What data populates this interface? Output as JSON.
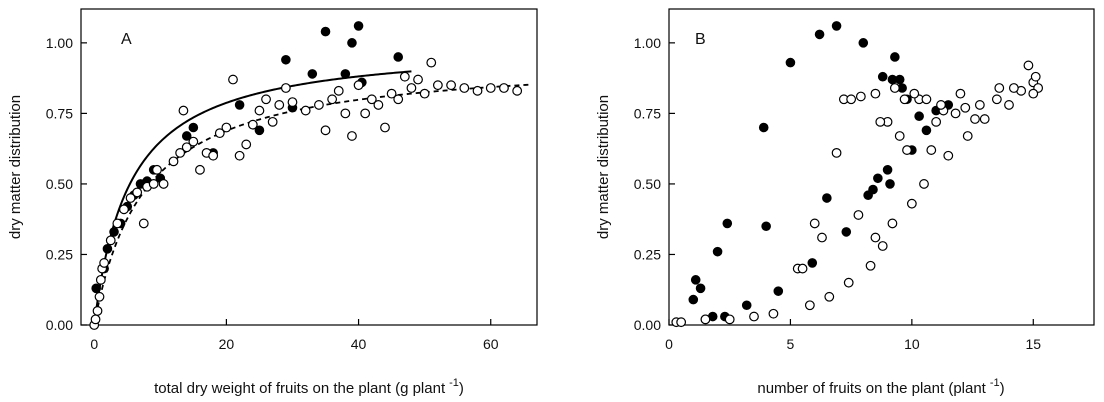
{
  "chart_data": [
    {
      "type": "scatter",
      "panel": "A",
      "xlabel": "total dry weight of fruits on the plant (g plant",
      "xlabel_sup": "-1",
      "xlabel_end": ")",
      "ylabel": "dry matter distribution",
      "xlim": [
        -2,
        67
      ],
      "ylim": [
        0,
        1.12
      ],
      "xticks": [
        0,
        20,
        40,
        60
      ],
      "yticks": [
        0.0,
        0.25,
        0.5,
        0.75,
        1.0
      ],
      "ytick_labels": [
        "0.00",
        "0.25",
        "0.50",
        "0.75",
        "1.00"
      ],
      "grid": false,
      "series": [
        {
          "marker": "filled",
          "points": [
            [
              0.3,
              0.13
            ],
            [
              1.5,
              0.2
            ],
            [
              2,
              0.27
            ],
            [
              3,
              0.33
            ],
            [
              4,
              0.36
            ],
            [
              5,
              0.42
            ],
            [
              6,
              0.46
            ],
            [
              7,
              0.5
            ],
            [
              8,
              0.51
            ],
            [
              9,
              0.55
            ],
            [
              10,
              0.52
            ],
            [
              14,
              0.67
            ],
            [
              15,
              0.7
            ],
            [
              18,
              0.61
            ],
            [
              22,
              0.78
            ],
            [
              25,
              0.69
            ],
            [
              29,
              0.94
            ],
            [
              30,
              0.77
            ],
            [
              33,
              0.89
            ],
            [
              35,
              1.04
            ],
            [
              38,
              0.89
            ],
            [
              39,
              1.0
            ],
            [
              40,
              1.06
            ],
            [
              40.5,
              0.86
            ],
            [
              46,
              0.95
            ]
          ]
        },
        {
          "marker": "open",
          "points": [
            [
              0,
              0.0
            ],
            [
              0.2,
              0.02
            ],
            [
              0.5,
              0.05
            ],
            [
              0.8,
              0.1
            ],
            [
              1,
              0.16
            ],
            [
              1.2,
              0.2
            ],
            [
              1.5,
              0.22
            ],
            [
              2.5,
              0.3
            ],
            [
              3.5,
              0.36
            ],
            [
              4.5,
              0.41
            ],
            [
              5.5,
              0.45
            ],
            [
              6.5,
              0.47
            ],
            [
              7.5,
              0.36
            ],
            [
              8,
              0.49
            ],
            [
              9,
              0.5
            ],
            [
              9.5,
              0.55
            ],
            [
              10.5,
              0.5
            ],
            [
              12,
              0.58
            ],
            [
              13,
              0.61
            ],
            [
              13.5,
              0.76
            ],
            [
              14,
              0.63
            ],
            [
              15,
              0.65
            ],
            [
              16,
              0.55
            ],
            [
              17,
              0.61
            ],
            [
              18,
              0.6
            ],
            [
              19,
              0.68
            ],
            [
              20,
              0.7
            ],
            [
              21,
              0.87
            ],
            [
              22,
              0.6
            ],
            [
              23,
              0.64
            ],
            [
              24,
              0.71
            ],
            [
              25,
              0.76
            ],
            [
              26,
              0.8
            ],
            [
              27,
              0.72
            ],
            [
              28,
              0.78
            ],
            [
              29,
              0.84
            ],
            [
              30,
              0.79
            ],
            [
              32,
              0.76
            ],
            [
              34,
              0.78
            ],
            [
              35,
              0.69
            ],
            [
              36,
              0.8
            ],
            [
              37,
              0.83
            ],
            [
              38,
              0.75
            ],
            [
              39,
              0.67
            ],
            [
              40,
              0.85
            ],
            [
              41,
              0.75
            ],
            [
              42,
              0.8
            ],
            [
              43,
              0.78
            ],
            [
              44,
              0.7
            ],
            [
              45,
              0.82
            ],
            [
              46,
              0.8
            ],
            [
              47,
              0.88
            ],
            [
              48,
              0.84
            ],
            [
              49,
              0.87
            ],
            [
              50,
              0.82
            ],
            [
              51,
              0.93
            ],
            [
              52,
              0.85
            ],
            [
              54,
              0.85
            ],
            [
              56,
              0.84
            ],
            [
              58,
              0.83
            ],
            [
              60,
              0.84
            ],
            [
              62,
              0.84
            ],
            [
              64,
              0.83
            ]
          ]
        }
      ],
      "fits": [
        {
          "style": "solid",
          "xmax": 48,
          "params": [
            1.0,
            5.4
          ]
        },
        {
          "style": "dashed",
          "xmax": 66,
          "params": [
            0.95,
            7.6
          ]
        }
      ]
    },
    {
      "type": "scatter",
      "panel": "B",
      "xlabel": "number of fruits on the plant (plant",
      "xlabel_sup": "-1",
      "xlabel_end": ")",
      "ylabel": "dry matter distribution",
      "xlim": [
        0,
        17.5
      ],
      "ylim": [
        0,
        1.12
      ],
      "xticks": [
        0,
        5,
        10,
        15
      ],
      "yticks": [
        0.0,
        0.25,
        0.5,
        0.75,
        1.0
      ],
      "ytick_labels": [
        "0.00",
        "0.25",
        "0.50",
        "0.75",
        "1.00"
      ],
      "grid": false,
      "series": [
        {
          "marker": "filled",
          "points": [
            [
              1.0,
              0.09
            ],
            [
              1.1,
              0.16
            ],
            [
              1.3,
              0.13
            ],
            [
              1.5,
              0.02
            ],
            [
              1.8,
              0.03
            ],
            [
              2.0,
              0.26
            ],
            [
              2.3,
              0.03
            ],
            [
              2.4,
              0.36
            ],
            [
              3.2,
              0.07
            ],
            [
              3.9,
              0.7
            ],
            [
              4.0,
              0.35
            ],
            [
              4.5,
              0.12
            ],
            [
              5.0,
              0.93
            ],
            [
              5.9,
              0.22
            ],
            [
              6.2,
              1.03
            ],
            [
              6.5,
              0.45
            ],
            [
              6.9,
              1.06
            ],
            [
              7.3,
              0.33
            ],
            [
              8.0,
              1.0
            ],
            [
              8.2,
              0.46
            ],
            [
              8.4,
              0.48
            ],
            [
              8.6,
              0.52
            ],
            [
              8.8,
              0.88
            ],
            [
              9.0,
              0.55
            ],
            [
              9.1,
              0.5
            ],
            [
              9.2,
              0.87
            ],
            [
              9.3,
              0.95
            ],
            [
              9.5,
              0.87
            ],
            [
              9.6,
              0.84
            ],
            [
              9.8,
              0.8
            ],
            [
              10.0,
              0.62
            ],
            [
              10.3,
              0.74
            ],
            [
              10.6,
              0.69
            ],
            [
              11.0,
              0.76
            ],
            [
              11.3,
              0.77
            ],
            [
              11.5,
              0.78
            ]
          ]
        },
        {
          "marker": "open",
          "points": [
            [
              0.3,
              0.01
            ],
            [
              0.5,
              0.01
            ],
            [
              1.5,
              0.02
            ],
            [
              2.5,
              0.02
            ],
            [
              3.5,
              0.03
            ],
            [
              4.3,
              0.04
            ],
            [
              5.3,
              0.2
            ],
            [
              5.5,
              0.2
            ],
            [
              5.8,
              0.07
            ],
            [
              6.0,
              0.36
            ],
            [
              6.3,
              0.31
            ],
            [
              6.6,
              0.1
            ],
            [
              6.9,
              0.61
            ],
            [
              7.2,
              0.8
            ],
            [
              7.4,
              0.15
            ],
            [
              7.8,
              0.39
            ],
            [
              8.3,
              0.21
            ],
            [
              8.5,
              0.31
            ],
            [
              8.8,
              0.28
            ],
            [
              9.0,
              0.72
            ],
            [
              9.2,
              0.36
            ],
            [
              9.5,
              0.67
            ],
            [
              9.8,
              0.62
            ],
            [
              10.0,
              0.43
            ],
            [
              10.3,
              0.8
            ],
            [
              10.5,
              0.5
            ],
            [
              10.8,
              0.62
            ],
            [
              11.0,
              0.72
            ],
            [
              11.3,
              0.76
            ],
            [
              11.5,
              0.6
            ],
            [
              12.0,
              0.82
            ],
            [
              12.3,
              0.67
            ],
            [
              12.6,
              0.73
            ],
            [
              13.0,
              0.73
            ],
            [
              13.5,
              0.8
            ],
            [
              14.0,
              0.78
            ],
            [
              14.5,
              0.83
            ],
            [
              15.0,
              0.86
            ],
            [
              7.5,
              0.8
            ],
            [
              7.9,
              0.81
            ],
            [
              8.5,
              0.82
            ],
            [
              8.7,
              0.72
            ],
            [
              9.3,
              0.84
            ],
            [
              9.7,
              0.8
            ],
            [
              10.1,
              0.82
            ],
            [
              10.6,
              0.8
            ],
            [
              11.2,
              0.78
            ],
            [
              11.8,
              0.75
            ],
            [
              12.2,
              0.77
            ],
            [
              12.8,
              0.78
            ],
            [
              13.6,
              0.84
            ],
            [
              14.2,
              0.84
            ],
            [
              14.8,
              0.92
            ],
            [
              15.1,
              0.88
            ],
            [
              15.2,
              0.84
            ],
            [
              15.0,
              0.82
            ]
          ]
        }
      ]
    }
  ]
}
